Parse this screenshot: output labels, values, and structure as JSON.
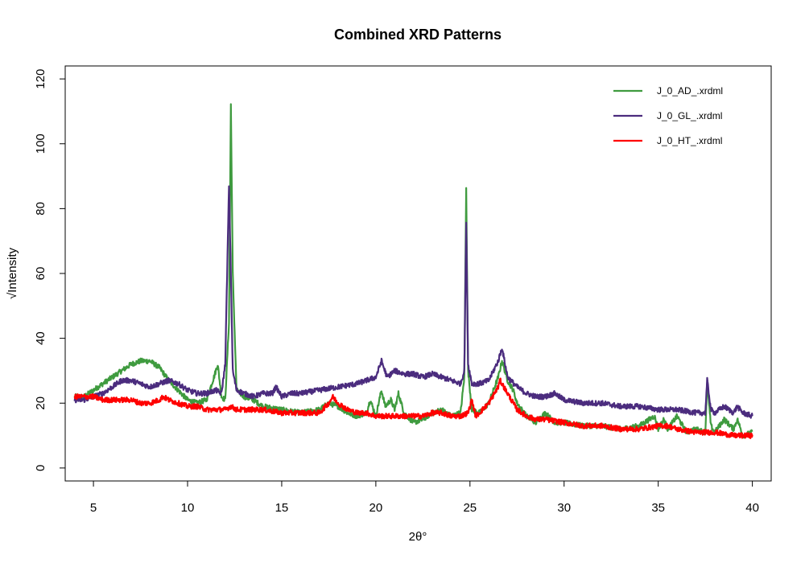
{
  "chart_data": {
    "type": "line",
    "title": "Combined XRD Patterns",
    "xlabel": "2θ°",
    "ylabel": "√Intensity",
    "xlim": [
      3.5,
      41
    ],
    "ylim": [
      -4,
      124
    ],
    "xticks": [
      5,
      10,
      15,
      20,
      25,
      30,
      35,
      40
    ],
    "yticks": [
      0,
      20,
      40,
      60,
      80,
      100,
      120
    ],
    "xtick_labels": [
      "5",
      "10",
      "15",
      "20",
      "25",
      "30",
      "35",
      "40"
    ],
    "ytick_labels": [
      "0",
      "20",
      "40",
      "60",
      "80",
      "100",
      "120"
    ],
    "grid": false,
    "legend_position": "top-right",
    "series": [
      {
        "name": "J_0_AD_.xrdml",
        "color": "#3f9b3f",
        "x": [
          4.0,
          4.5,
          5.0,
          5.5,
          6.0,
          6.5,
          7.0,
          7.5,
          8.0,
          8.5,
          9.0,
          9.5,
          10.0,
          10.5,
          11.0,
          11.4,
          11.6,
          11.8,
          12.0,
          12.2,
          12.3,
          12.4,
          12.6,
          13.0,
          13.5,
          14.0,
          15.0,
          16.0,
          17.0,
          17.5,
          18.0,
          18.5,
          19.0,
          19.5,
          19.7,
          20.0,
          20.3,
          20.5,
          20.8,
          21.0,
          21.2,
          21.5,
          22.0,
          22.5,
          23.0,
          23.5,
          24.0,
          24.5,
          24.7,
          24.8,
          24.9,
          25.1,
          25.5,
          26.0,
          26.5,
          26.7,
          27.0,
          27.3,
          27.5,
          28.0,
          28.5,
          29.0,
          29.5,
          30.0,
          31.0,
          32.0,
          33.0,
          34.0,
          34.8,
          35.0,
          35.3,
          35.5,
          36.0,
          36.5,
          37.0,
          37.5,
          37.6,
          37.8,
          38.0,
          38.5,
          39.0,
          39.2,
          39.5,
          40.0
        ],
        "y": [
          22,
          22,
          24,
          26,
          28,
          30,
          32,
          33,
          33,
          31,
          27,
          24,
          21,
          20,
          21,
          28,
          32,
          22,
          21,
          45,
          112,
          60,
          24,
          22,
          21,
          19,
          18,
          17,
          18,
          20,
          19,
          17,
          16,
          17,
          21,
          16,
          24,
          19,
          21,
          18,
          23,
          17,
          14,
          15,
          17,
          18,
          16,
          17,
          28,
          87,
          30,
          18,
          17,
          20,
          28,
          33,
          27,
          24,
          20,
          16,
          14,
          17,
          14,
          14,
          13,
          13,
          12,
          13,
          16,
          12,
          15,
          12,
          16,
          11,
          12,
          11,
          26,
          13,
          11,
          15,
          12,
          15,
          10,
          11
        ]
      },
      {
        "name": "J_0_GL_.xrdml",
        "color": "#4b2c7e",
        "x": [
          4.0,
          4.5,
          5.0,
          5.5,
          6.0,
          6.5,
          7.0,
          7.5,
          8.0,
          8.5,
          9.0,
          9.5,
          10.0,
          10.5,
          11.0,
          11.5,
          11.8,
          12.0,
          12.2,
          12.3,
          12.4,
          12.6,
          13.0,
          13.5,
          14.0,
          14.5,
          14.7,
          15.0,
          15.5,
          16.0,
          17.0,
          18.0,
          19.0,
          19.5,
          20.0,
          20.3,
          20.6,
          21.0,
          21.5,
          22.0,
          22.5,
          23.0,
          23.5,
          24.0,
          24.5,
          24.7,
          24.8,
          24.9,
          25.1,
          25.5,
          26.0,
          26.5,
          26.7,
          27.0,
          27.5,
          28.0,
          28.5,
          29.0,
          29.5,
          30.0,
          31.0,
          32.0,
          33.0,
          34.0,
          35.0,
          36.0,
          37.0,
          37.5,
          37.6,
          37.8,
          38.0,
          38.5,
          39.0,
          39.2,
          39.5,
          40.0
        ],
        "y": [
          21,
          21,
          22,
          23,
          25,
          27,
          27,
          26,
          25,
          26,
          27,
          26,
          24,
          23,
          23,
          24,
          23,
          32,
          87,
          60,
          30,
          24,
          23,
          22,
          23,
          23,
          25,
          22,
          23,
          23,
          24,
          25,
          26,
          27,
          28,
          33,
          28,
          30,
          29,
          29,
          28,
          29,
          28,
          27,
          26,
          30,
          76,
          32,
          26,
          26,
          27,
          33,
          37,
          28,
          25,
          23,
          22,
          22,
          23,
          21,
          20,
          20,
          19,
          19,
          18,
          18,
          17,
          17,
          27,
          18,
          17,
          19,
          17,
          19,
          17,
          16
        ]
      },
      {
        "name": "J_0_HT_.xrdml",
        "color": "#ff0000",
        "x": [
          4.0,
          4.5,
          5.0,
          5.5,
          6.0,
          6.5,
          7.0,
          7.5,
          8.0,
          8.5,
          8.7,
          9.0,
          9.5,
          10.0,
          10.5,
          11.0,
          11.5,
          12.0,
          12.3,
          12.6,
          13.0,
          14.0,
          15.0,
          16.0,
          16.5,
          17.0,
          17.5,
          17.7,
          18.0,
          18.5,
          19.0,
          19.5,
          20.0,
          20.5,
          21.0,
          21.5,
          22.0,
          22.5,
          23.0,
          23.5,
          24.0,
          24.5,
          24.9,
          25.1,
          25.3,
          25.5,
          26.0,
          26.5,
          26.6,
          27.0,
          27.5,
          28.0,
          28.5,
          29.0,
          30.0,
          31.0,
          32.0,
          33.0,
          34.0,
          35.0,
          35.5,
          36.0,
          37.0,
          38.0,
          39.0,
          40.0
        ],
        "y": [
          22,
          22,
          22,
          21,
          21,
          21,
          21,
          20,
          20,
          21,
          22,
          21,
          20,
          19,
          19,
          18,
          18,
          18,
          19,
          18,
          18,
          18,
          17,
          17,
          17,
          17,
          20,
          22,
          20,
          18,
          17,
          17,
          16,
          16,
          16,
          16,
          16,
          16,
          17,
          17,
          16,
          16,
          17,
          21,
          16,
          17,
          20,
          25,
          27,
          23,
          18,
          16,
          15,
          15,
          14,
          13,
          13,
          12,
          12,
          13,
          13,
          12,
          11,
          11,
          10,
          10
        ]
      }
    ]
  }
}
